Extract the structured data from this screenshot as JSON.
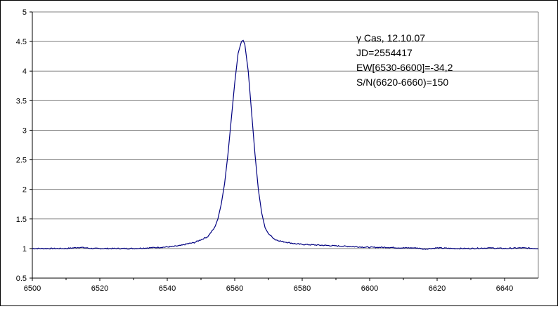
{
  "chart_data": {
    "type": "line",
    "title": "",
    "xlabel": "",
    "ylabel": "",
    "xlim": [
      6500,
      6650
    ],
    "ylim": [
      0.5,
      5
    ],
    "x_ticks": [
      6500,
      6520,
      6540,
      6560,
      6580,
      6600,
      6620,
      6640
    ],
    "y_ticks": [
      0.5,
      1,
      1.5,
      2,
      2.5,
      3,
      3.5,
      4,
      4.5,
      5
    ],
    "grid": "horizontal",
    "legend": "none",
    "annotation": [
      "γ Cas, 12.10.07",
      "JD=2554417",
      "EW[6530-6600]=-34,2",
      "S/N(6620-6660)=150"
    ],
    "series": [
      {
        "color": "#000080",
        "x": [
          6500,
          6505,
          6510,
          6514,
          6518,
          6522,
          6526,
          6530,
          6534,
          6538,
          6541,
          6544,
          6546,
          6548,
          6550,
          6552,
          6554,
          6555,
          6556,
          6557,
          6558,
          6559,
          6560,
          6561,
          6562,
          6562.5,
          6563,
          6564,
          6565,
          6566,
          6567,
          6568,
          6569,
          6570,
          6571,
          6572,
          6574,
          6576,
          6578,
          6580,
          6584,
          6588,
          6592,
          6596,
          6600,
          6605,
          6610,
          6614,
          6616,
          6620,
          6625,
          6630,
          6635,
          6640,
          6645,
          6650
        ],
        "y": [
          1.0,
          1.0,
          1.0,
          1.02,
          1.0,
          1.0,
          1.0,
          1.0,
          1.01,
          1.02,
          1.03,
          1.05,
          1.08,
          1.1,
          1.15,
          1.2,
          1.35,
          1.5,
          1.75,
          2.1,
          2.6,
          3.2,
          3.8,
          4.3,
          4.5,
          4.52,
          4.45,
          4.0,
          3.3,
          2.6,
          2.0,
          1.6,
          1.35,
          1.25,
          1.2,
          1.15,
          1.12,
          1.1,
          1.08,
          1.07,
          1.06,
          1.05,
          1.04,
          1.03,
          1.02,
          1.02,
          1.01,
          1.01,
          0.99,
          1.01,
          1.0,
          1.0,
          1.01,
          1.0,
          1.01,
          1.0
        ]
      }
    ]
  }
}
